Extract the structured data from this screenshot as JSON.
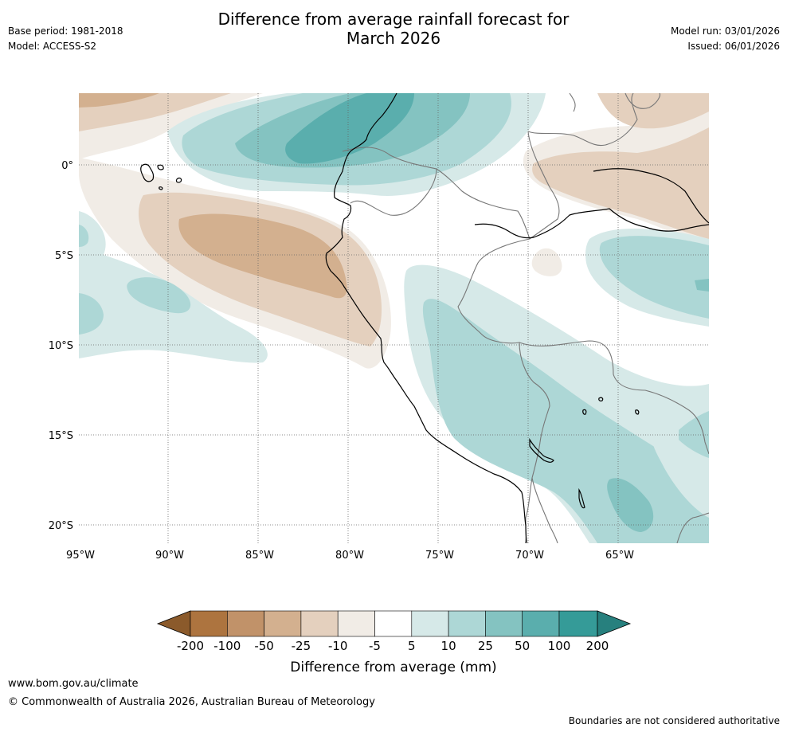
{
  "title": {
    "line1": "Difference from average rainfall forecast for",
    "line2": "March 2026"
  },
  "meta": {
    "base_period": "Base period: 1981-2018",
    "model": "Model: ACCESS-S2",
    "model_run": "Model run: 03/01/2026",
    "issued": "Issued: 06/01/2026"
  },
  "map": {
    "region": "Western South America (Peru / Ecuador / eastern Pacific)",
    "lat_labels": [
      "0°",
      "5°S",
      "10°S",
      "15°S",
      "20°S"
    ],
    "lon_labels": [
      "95°W",
      "90°W",
      "85°W",
      "80°W",
      "75°W",
      "70°W",
      "65°W"
    ],
    "colors": {
      "coast": "#000000",
      "border": "#777777",
      "grid": "#666666"
    }
  },
  "legend": {
    "label": "Difference from average (mm)",
    "ticks": [
      "-200",
      "-100",
      "-50",
      "-25",
      "-10",
      "-5",
      "5",
      "10",
      "25",
      "50",
      "100",
      "200"
    ],
    "colors": [
      "#8b5a2b",
      "#ad743f",
      "#c19269",
      "#d3b08f",
      "#e4d0be",
      "#f1ece6",
      "#ffffff",
      "#d6e9e8",
      "#add7d6",
      "#84c3c1",
      "#5aaead",
      "#359b98",
      "#27807e"
    ]
  },
  "footer": {
    "url": "www.bom.gov.au/climate",
    "copyright": "© Commonwealth of Australia 2026, Australian Bureau of Meteorology",
    "disclaimer": "Boundaries are not considered authoritative"
  }
}
